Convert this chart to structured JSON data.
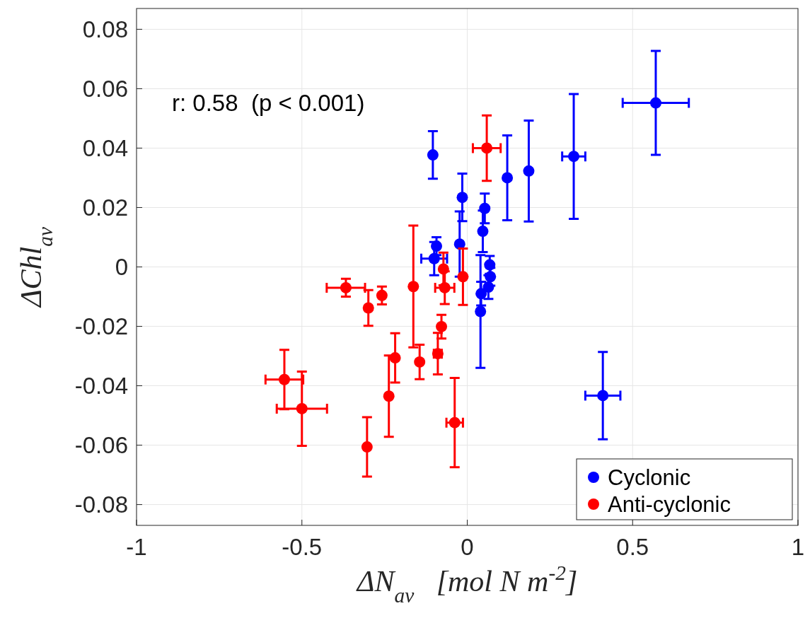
{
  "chart_data": {
    "type": "scatter",
    "xlabel": "ΔN$_{av}$   [mol N m$^{-2}$]",
    "ylabel": "ΔChl$_{av}$",
    "annotations": [
      "r: 0.58  (p < 0.001)"
    ],
    "xlim": [
      -1,
      1
    ],
    "ylim": [
      -0.087,
      0.087
    ],
    "xticks": [
      -1,
      -0.5,
      0,
      0.5,
      1
    ],
    "yticks": [
      -0.08,
      -0.06,
      -0.04,
      -0.02,
      0,
      0.02,
      0.04,
      0.06,
      0.08
    ],
    "grid": true,
    "legend": "bottom right",
    "marker": "circle",
    "series": [
      {
        "name": "Cyclonic",
        "color": "#0000ff",
        "x": [
          -0.104,
          -0.015,
          -0.023,
          0.053,
          0.04,
          0.047,
          -0.093,
          -0.1,
          0.068,
          0.07,
          0.064,
          0.042,
          0.121,
          0.186,
          0.322,
          0.57,
          0.41
        ],
        "values": [
          0.0377,
          0.0234,
          0.0077,
          0.0197,
          -0.015,
          0.012,
          0.007,
          0.0028,
          0.0007,
          -0.0033,
          -0.0068,
          -0.009,
          0.03,
          0.0323,
          0.0372,
          0.0552,
          -0.0433
        ],
        "errors": [
          0.008,
          0.008,
          0.011,
          0.005,
          0.019,
          0.007,
          0.003,
          0.0056,
          0.003,
          0.003,
          0.004,
          0.004,
          0.0143,
          0.017,
          0.021,
          0.0175,
          0.0147
        ],
        "xerrors": [
          null,
          null,
          null,
          null,
          null,
          null,
          null,
          0.039,
          null,
          null,
          null,
          null,
          null,
          null,
          0.035,
          0.1,
          0.053
        ]
      },
      {
        "name": "Anti-cyclonic",
        "color": "#ff0000",
        "x": [
          -0.553,
          -0.5,
          -0.367,
          -0.299,
          -0.258,
          -0.163,
          -0.072,
          -0.068,
          -0.013,
          -0.078,
          -0.089,
          -0.144,
          -0.218,
          -0.237,
          -0.303,
          -0.038,
          0.059
        ],
        "values": [
          -0.0379,
          -0.0477,
          -0.007,
          -0.0138,
          -0.0096,
          -0.0066,
          -0.0007,
          -0.007,
          -0.0033,
          -0.0201,
          -0.0292,
          -0.032,
          -0.0306,
          -0.0435,
          -0.0606,
          -0.0524,
          0.04
        ],
        "errors": [
          0.01,
          0.0125,
          0.003,
          0.006,
          0.003,
          0.0205,
          0.0055,
          0.0055,
          0.0095,
          0.004,
          0.007,
          0.0058,
          0.0083,
          0.0137,
          0.01,
          0.015,
          0.011
        ],
        "xerrors": [
          0.057,
          0.076,
          0.058,
          null,
          null,
          null,
          null,
          0.029,
          null,
          null,
          0.012,
          null,
          null,
          null,
          null,
          0.025,
          0.042
        ]
      }
    ]
  }
}
